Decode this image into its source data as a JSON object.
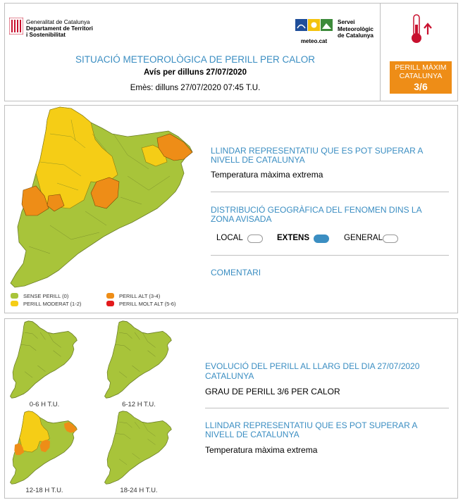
{
  "header": {
    "gen_line1": "Generalitat de Catalunya",
    "gen_line2": "Departament de Territori",
    "gen_line3": "i Sostenibilitat",
    "meteo_brand": "meteo.cat",
    "meteo_line1": "Servei",
    "meteo_line2": "Meteorològic",
    "meteo_line3": "de Catalunya",
    "title": "SITUACIÓ METEOROLÒGICA DE PERILL PER CALOR",
    "avis": "Avís per dilluns 27/07/2020",
    "emes": "Emès: dilluns 27/07/2020 07:45 T.U.",
    "badge_line1": "PERILL MÀXIM",
    "badge_line2": "CATALUNYA",
    "badge_level": "3/6",
    "badge_color": "#ee8d17",
    "icon": "thermometer-up-icon"
  },
  "main": {
    "h1": "LLINDAR REPRESENTATIU QUE ES POT SUPERAR A NIVELL DE CATALUNYA",
    "t1": "Temperatura màxima extrema",
    "h2": "DISTRIBUCIÓ GEOGRÀFICA DEL FENOMEN DINS LA ZONA AVISADA",
    "opt_local": "LOCAL",
    "opt_extens": "EXTENS",
    "opt_general": "GENERAL",
    "selected": "EXTENS",
    "h3": "COMENTARI"
  },
  "legend": {
    "sense": "SENSE PERILL (0)",
    "moderat": "PERILL MODERAT (1-2)",
    "alt": "PERILL ALT (3-4)",
    "molt_alt": "PERILL MOLT ALT (5-6)",
    "colors": {
      "sense": "#a8c43a",
      "moderat": "#f5cd16",
      "alt": "#ee8d17",
      "molt_alt": "#e31a1c"
    }
  },
  "evolution": {
    "h1": "EVOLUCIÓ DEL PERILL AL LLARG DEL DIA 27/07/2020",
    "h1b": "CATALUNYA",
    "t1": "GRAU DE PERILL 3/6 PER CALOR",
    "h2": "LLINDAR REPRESENTATIU QUE ES POT SUPERAR A NIVELL DE CATALUNYA",
    "t2": "Temperatura màxima extrema",
    "maps": [
      "0-6 H T.U.",
      "6-12 H T.U.",
      "12-18 H T.U.",
      "18-24 H T.U."
    ]
  }
}
